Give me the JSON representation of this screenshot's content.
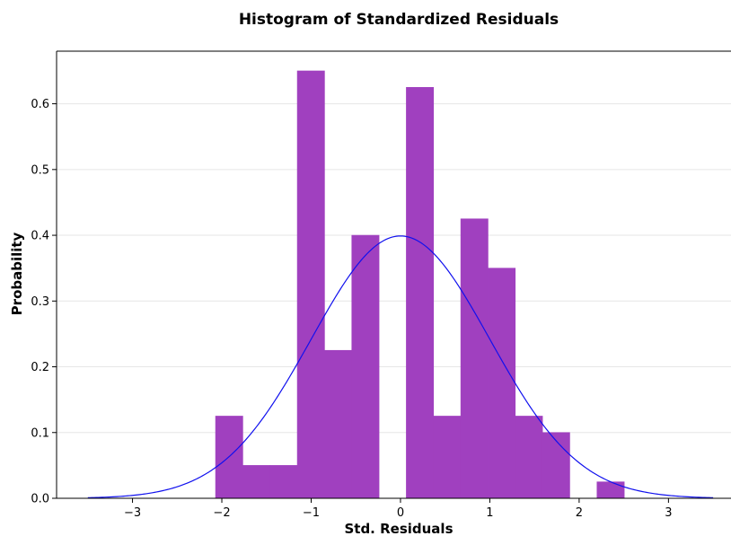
{
  "chart_data": {
    "type": "bar",
    "title": "Histogram of Standardized Residuals",
    "xlabel": "Std. Residuals",
    "ylabel": "Probability",
    "xlim": [
      -3.85,
      3.7
    ],
    "ylim": [
      0,
      0.68
    ],
    "xticks": [
      -3,
      -2,
      -1,
      0,
      1,
      2,
      3
    ],
    "xtick_labels": [
      "−3",
      "−2",
      "−1",
      "0",
      "1",
      "2",
      "3"
    ],
    "yticks": [
      0.0,
      0.1,
      0.2,
      0.3,
      0.4,
      0.5,
      0.6
    ],
    "ytick_labels": [
      "0.0",
      "0.1",
      "0.2",
      "0.3",
      "0.4",
      "0.5",
      "0.6"
    ],
    "grid": "horizontal",
    "bar_color": "#a040bf",
    "bins": [
      {
        "x0": -2.07,
        "x1": -1.765,
        "value": 0.125
      },
      {
        "x0": -1.765,
        "x1": -1.46,
        "value": 0.05
      },
      {
        "x0": -1.46,
        "x1": -1.155,
        "value": 0.05
      },
      {
        "x0": -1.155,
        "x1": -0.85,
        "value": 0.65
      },
      {
        "x0": -0.85,
        "x1": -0.545,
        "value": 0.225
      },
      {
        "x0": -0.545,
        "x1": -0.24,
        "value": 0.4
      },
      {
        "x0": -0.24,
        "x1": 0.065,
        "value": 0.0
      },
      {
        "x0": 0.065,
        "x1": 0.37,
        "value": 0.625
      },
      {
        "x0": 0.37,
        "x1": 0.675,
        "value": 0.125
      },
      {
        "x0": 0.675,
        "x1": 0.98,
        "value": 0.425
      },
      {
        "x0": 0.98,
        "x1": 1.285,
        "value": 0.35
      },
      {
        "x0": 1.285,
        "x1": 1.59,
        "value": 0.125
      },
      {
        "x0": 1.59,
        "x1": 1.895,
        "value": 0.1
      },
      {
        "x0": 1.895,
        "x1": 2.2,
        "value": 0.0
      },
      {
        "x0": 2.2,
        "x1": 2.505,
        "value": 0.025
      }
    ],
    "curve": {
      "type": "normal_pdf",
      "mean": 0,
      "std": 1,
      "x_range": [
        -3.5,
        3.5
      ],
      "color": "#1010ee"
    }
  }
}
